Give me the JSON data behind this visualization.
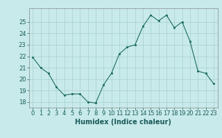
{
  "x": [
    0,
    1,
    2,
    3,
    4,
    5,
    6,
    7,
    8,
    9,
    10,
    11,
    12,
    13,
    14,
    15,
    16,
    17,
    18,
    19,
    20,
    21,
    22,
    23
  ],
  "y": [
    21.9,
    21.0,
    20.5,
    19.3,
    18.6,
    18.7,
    18.7,
    18.0,
    17.9,
    19.5,
    20.5,
    22.2,
    22.8,
    23.0,
    24.6,
    25.6,
    25.1,
    25.6,
    24.5,
    25.0,
    23.3,
    20.7,
    20.5,
    19.6
  ],
  "line_color": "#1a6b5a",
  "marker_color": "#1a6b5a",
  "bg_color": "#c8eaea",
  "grid_color": "#a8d0d0",
  "xlabel": "Humidex (Indice chaleur)",
  "ylim": [
    17.5,
    26.2
  ],
  "xlim": [
    -0.5,
    23.5
  ],
  "yticks": [
    18,
    19,
    20,
    21,
    22,
    23,
    24,
    25
  ],
  "xticks": [
    0,
    1,
    2,
    3,
    4,
    5,
    6,
    7,
    8,
    9,
    10,
    11,
    12,
    13,
    14,
    15,
    16,
    17,
    18,
    19,
    20,
    21,
    22,
    23
  ],
  "tick_fontsize": 6.0,
  "xlabel_fontsize": 7.0
}
